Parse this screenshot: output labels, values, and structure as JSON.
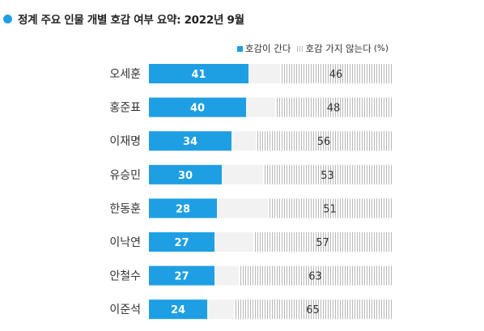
{
  "chart_data": {
    "type": "bar",
    "title": "정계 주요 인물 개별 호감 여부 요약: 2022년 9월",
    "unit": "(%)",
    "categories": [
      "오세훈",
      "홍준표",
      "이재명",
      "유승민",
      "한동훈",
      "이낙연",
      "안철수",
      "이준석"
    ],
    "series": [
      {
        "name": "호감이 간다",
        "values": [
          41,
          40,
          34,
          30,
          28,
          27,
          27,
          24
        ]
      },
      {
        "name": "호감 가지 않는다",
        "values": [
          46,
          48,
          56,
          53,
          51,
          57,
          63,
          65
        ]
      }
    ],
    "stacked": true,
    "orientation": "horizontal",
    "legend_position": "top-right",
    "colors": {
      "positive": "#1e9fe3",
      "negative_hatch": "#b7b7b7",
      "track": "#f2f2f2",
      "title_dot": "#1e9fe3"
    }
  }
}
